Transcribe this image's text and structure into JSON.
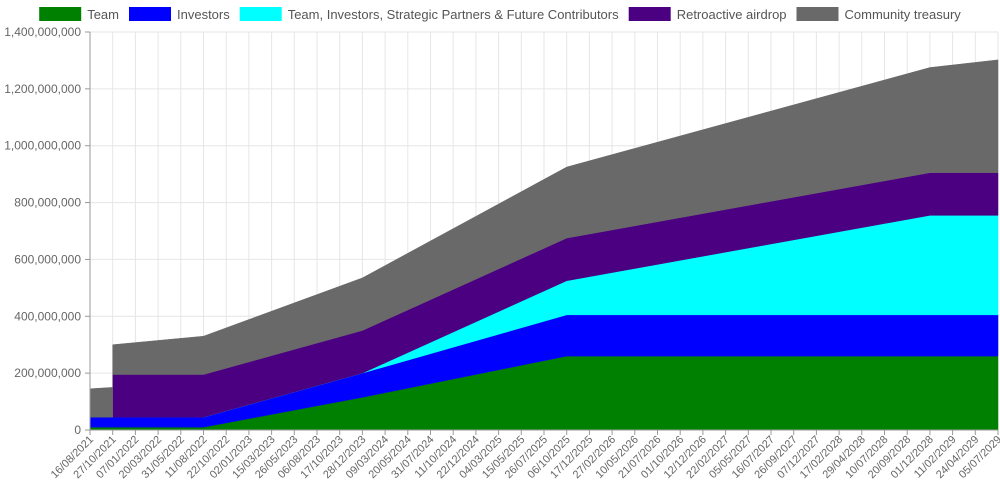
{
  "chart_data": {
    "type": "area",
    "stacked": true,
    "title": "",
    "xlabel": "",
    "ylabel": "",
    "ylim": [
      0,
      1400000000
    ],
    "y_ticks": [
      0,
      200000000,
      400000000,
      600000000,
      800000000,
      1000000000,
      1200000000,
      1400000000
    ],
    "y_tick_labels": [
      "0",
      "200,000,000",
      "400,000,000",
      "600,000,000",
      "800,000,000",
      "1,000,000,000",
      "1,200,000,000",
      "1,400,000,000"
    ],
    "x_tick_labels": [
      "16/08/2021",
      "27/10/2021",
      "07/01/2022",
      "20/03/2022",
      "31/05/2022",
      "11/08/2022",
      "22/10/2022",
      "02/01/2023",
      "15/03/2023",
      "26/05/2023",
      "06/08/2023",
      "17/10/2023",
      "28/12/2023",
      "09/03/2024",
      "20/05/2024",
      "31/07/2024",
      "11/10/2024",
      "22/12/2024",
      "04/03/2025",
      "15/05/2025",
      "26/07/2025",
      "06/10/2025",
      "17/12/2025",
      "27/02/2026",
      "10/05/2026",
      "21/07/2026",
      "01/10/2026",
      "12/12/2026",
      "22/02/2027",
      "05/05/2027",
      "16/07/2027",
      "26/09/2027",
      "07/12/2027",
      "17/02/2028",
      "29/04/2028",
      "10/07/2028",
      "20/09/2028",
      "01/12/2028",
      "11/02/2029",
      "24/04/2029",
      "05/07/2029"
    ],
    "legend_position": "top",
    "grid": true,
    "x": [
      "2021-08-16",
      "2021-10-27",
      "2021-10-27",
      "2022-08-11",
      "2023-12-28",
      "2025-10-06",
      "2028-12-01",
      "2029-07-05"
    ],
    "series": [
      {
        "name": "Team",
        "color": "#008000",
        "values": [
          10000000,
          10000000,
          10000000,
          10000000,
          115000000,
          260000000,
          260000000,
          260000000
        ]
      },
      {
        "name": "Investors",
        "color": "#0000ff",
        "values": [
          35000000,
          35000000,
          35000000,
          35000000,
          85000000,
          145000000,
          145000000,
          145000000
        ]
      },
      {
        "name": "Team, Investors, Strategic Partners & Future Contributors",
        "color": "#00ffff",
        "values": [
          0,
          0,
          0,
          0,
          0,
          120000000,
          350000000,
          350000000
        ]
      },
      {
        "name": "Retroactive airdrop",
        "color": "#4b0082",
        "values": [
          0,
          0,
          150000000,
          150000000,
          150000000,
          150000000,
          150000000,
          150000000
        ]
      },
      {
        "name": "Community treasury",
        "color": "#696969",
        "values": [
          100000000,
          105000000,
          105000000,
          135000000,
          185000000,
          250000000,
          370000000,
          397000000
        ]
      }
    ]
  }
}
